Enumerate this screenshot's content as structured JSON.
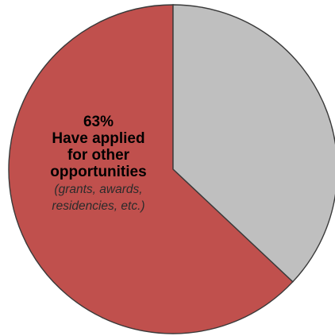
{
  "chart_data": {
    "type": "pie",
    "start": "top",
    "direction": "counterclockwise",
    "slices": [
      {
        "value": 63,
        "color": "#c0504d",
        "label_lines": [
          "63%",
          "Have applied",
          "for other",
          "opportunities"
        ],
        "sublabel_lines": [
          "(grants, awards,",
          "residencies, etc.)"
        ]
      },
      {
        "value": 37,
        "color": "#bfbfbf",
        "label_lines": [],
        "sublabel_lines": []
      }
    ]
  }
}
